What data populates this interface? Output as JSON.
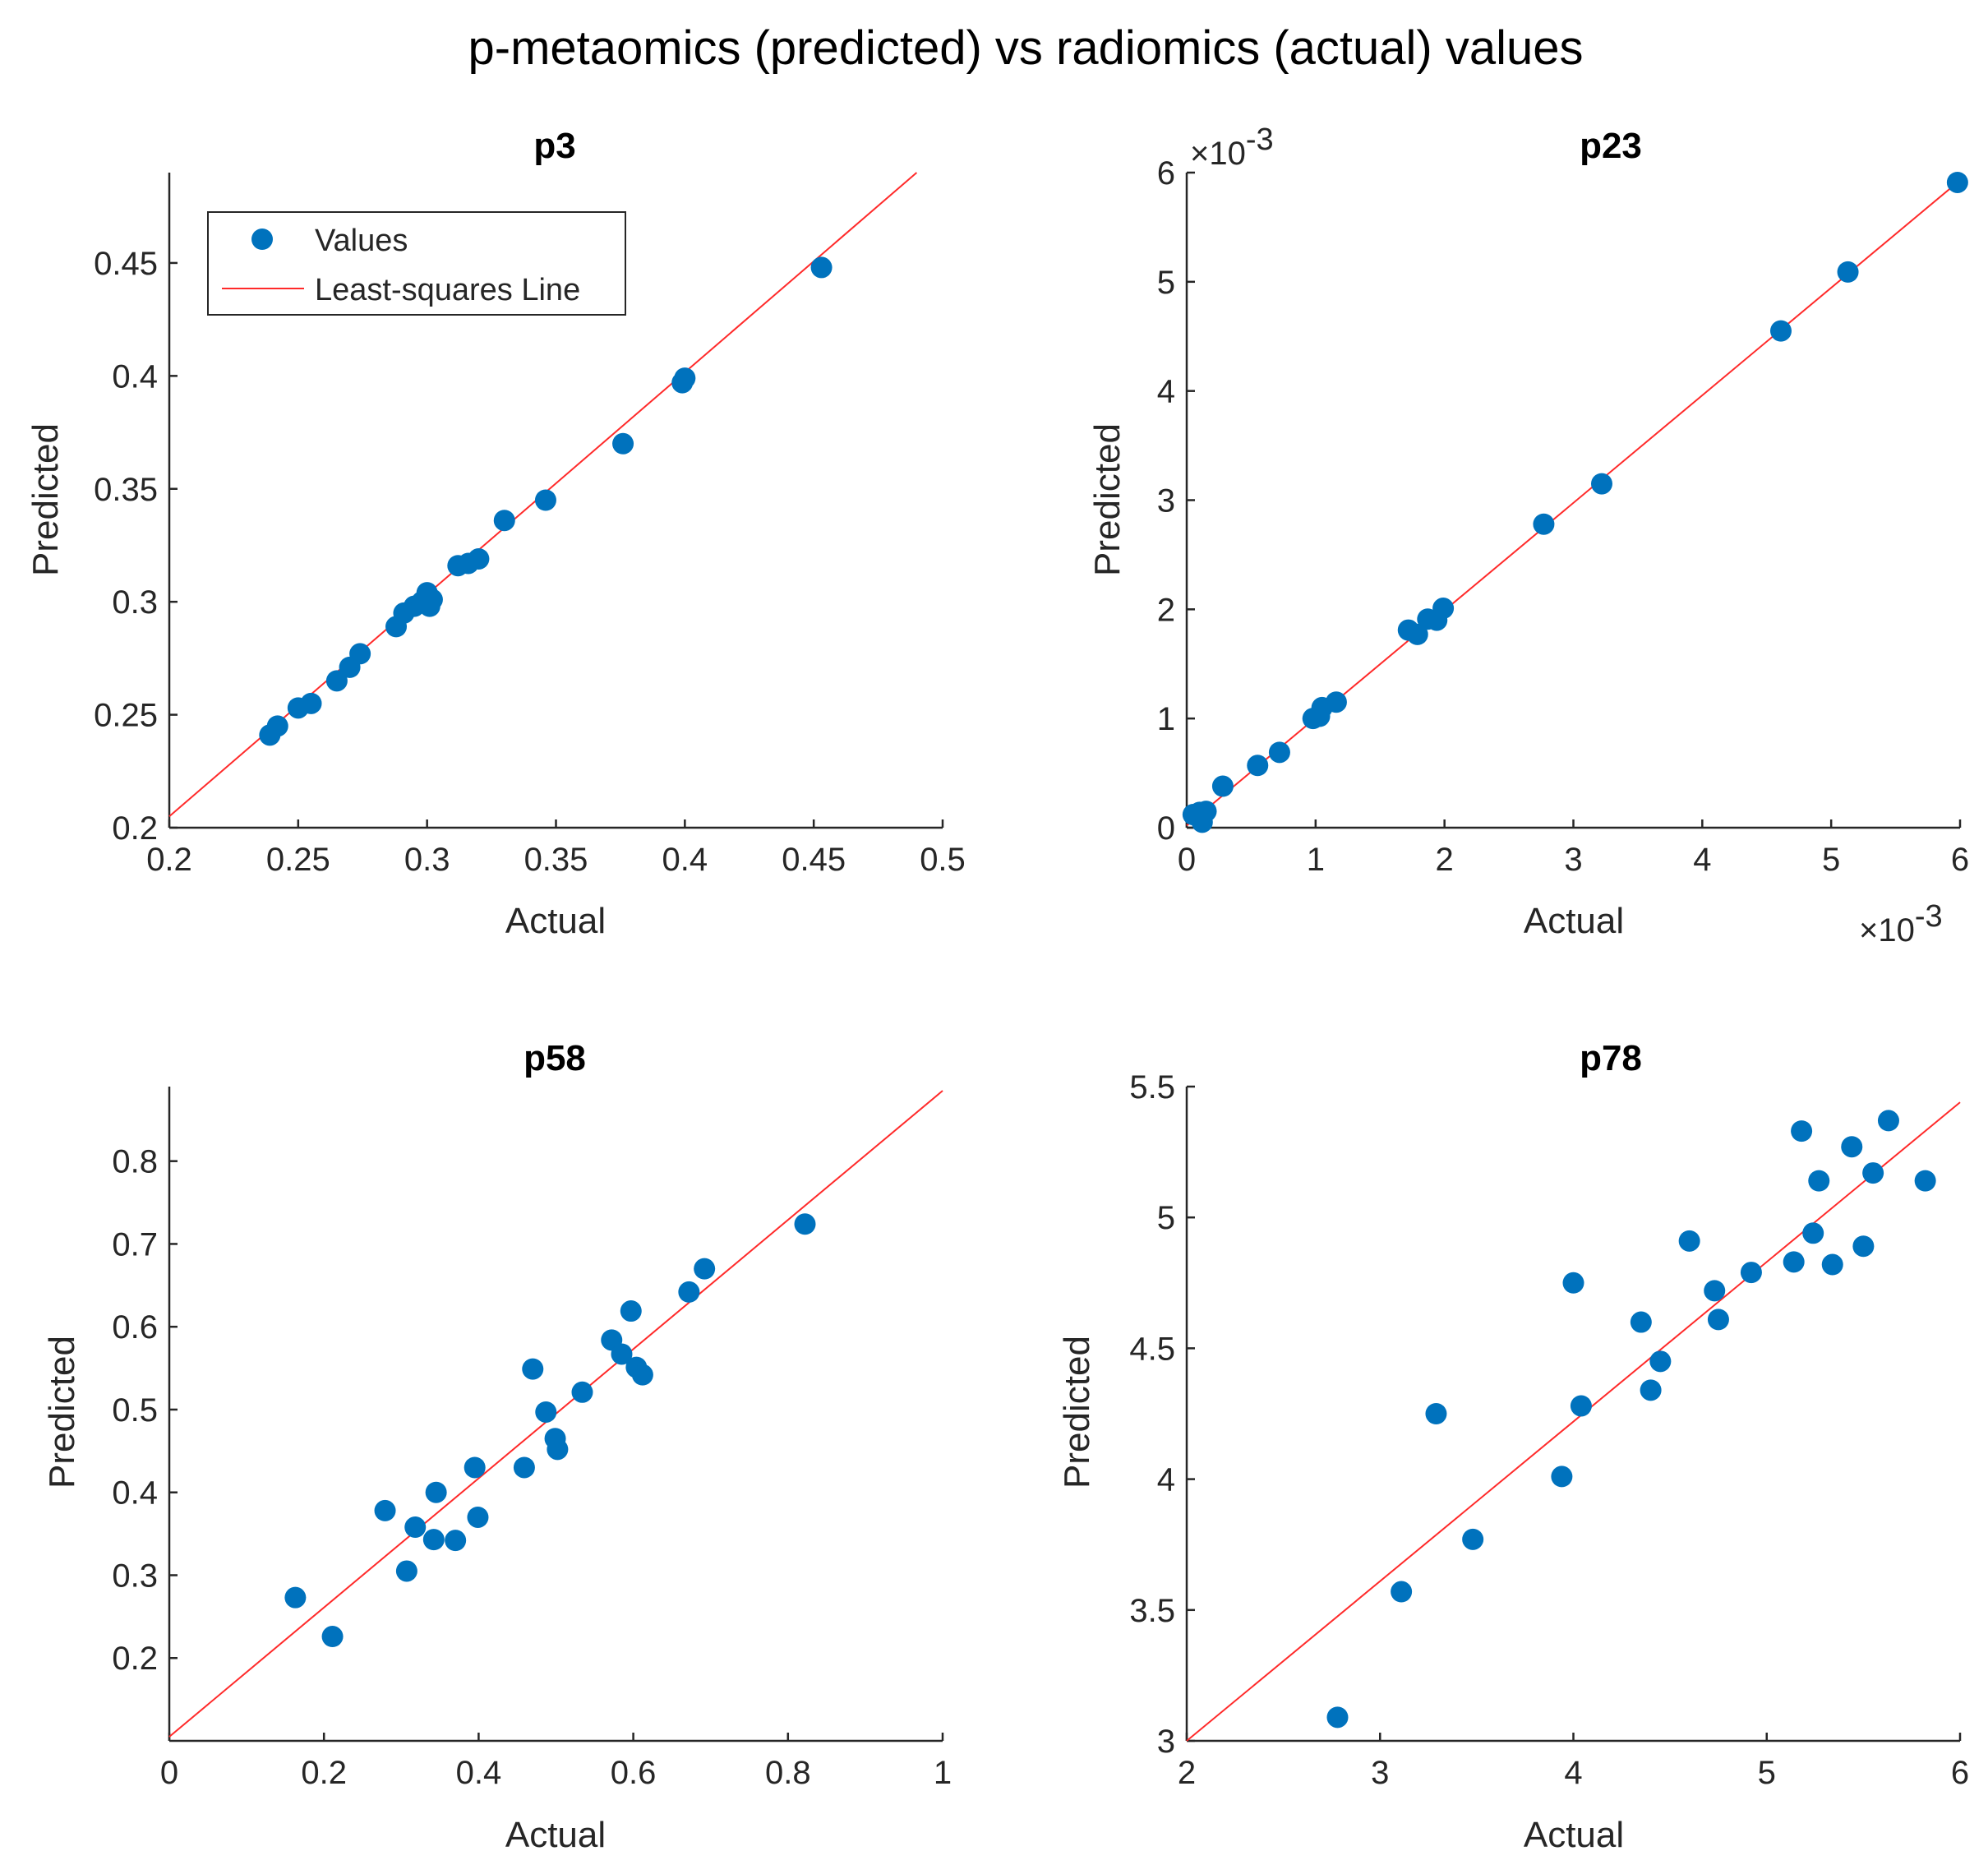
{
  "figure_title": "p-metaomics (predicted) vs radiomics (actual) values",
  "colors": {
    "marker": "#0072bd",
    "fit_line": "#ff2a2a",
    "axis": "#262626"
  },
  "chart_data": [
    {
      "type": "scatter",
      "title": "p3",
      "xlabel": "Actual",
      "ylabel": "Predicted",
      "xlim": [
        0.2,
        0.5
      ],
      "ylim": [
        0.2,
        0.49
      ],
      "xticks": [
        0.2,
        0.25,
        0.3,
        0.35,
        0.4,
        0.45,
        0.5
      ],
      "xtick_labels": [
        "0.2",
        "0.25",
        "0.3",
        "0.35",
        "0.4",
        "0.45",
        "0.5"
      ],
      "yticks": [
        0.2,
        0.25,
        0.3,
        0.35,
        0.4,
        0.45
      ],
      "ytick_labels": [
        "0.2",
        "0.25",
        "0.3",
        "0.35",
        "0.4",
        "0.45"
      ],
      "legend": {
        "position": "top-left",
        "entries": [
          "Values",
          "Least-squares Line"
        ]
      },
      "fit_line": {
        "slope": 0.983,
        "intercept": 0.0084
      },
      "points": [
        [
          0.239,
          0.241
        ],
        [
          0.242,
          0.245
        ],
        [
          0.25,
          0.253
        ],
        [
          0.255,
          0.255
        ],
        [
          0.265,
          0.265
        ],
        [
          0.27,
          0.271
        ],
        [
          0.274,
          0.277
        ],
        [
          0.288,
          0.289
        ],
        [
          0.291,
          0.295
        ],
        [
          0.295,
          0.298
        ],
        [
          0.298,
          0.3
        ],
        [
          0.3,
          0.304
        ],
        [
          0.302,
          0.301
        ],
        [
          0.301,
          0.298
        ],
        [
          0.312,
          0.316
        ],
        [
          0.316,
          0.317
        ],
        [
          0.32,
          0.319
        ],
        [
          0.33,
          0.336
        ],
        [
          0.346,
          0.345
        ],
        [
          0.376,
          0.37
        ],
        [
          0.399,
          0.397
        ],
        [
          0.4,
          0.399
        ],
        [
          0.453,
          0.448
        ]
      ]
    },
    {
      "type": "scatter",
      "title": "p23",
      "xlabel": "Actual",
      "ylabel": "Predicted",
      "x_multiplier": "×10",
      "x_exponent": "-3",
      "y_multiplier": "×10",
      "y_exponent": "-3",
      "xlim": [
        0,
        6
      ],
      "ylim": [
        0,
        6
      ],
      "xticks": [
        0,
        1,
        2,
        3,
        4,
        5,
        6
      ],
      "xtick_labels": [
        "0",
        "1",
        "2",
        "3",
        "4",
        "5",
        "6"
      ],
      "yticks": [
        0,
        1,
        2,
        3,
        4,
        5,
        6
      ],
      "ytick_labels": [
        "0",
        "1",
        "2",
        "3",
        "4",
        "5",
        "6"
      ],
      "fit_line": {
        "slope": 0.985,
        "intercept": 0.02
      },
      "points": [
        [
          0.05,
          0.12
        ],
        [
          0.1,
          0.14
        ],
        [
          0.15,
          0.15
        ],
        [
          0.12,
          0.05
        ],
        [
          0.28,
          0.38
        ],
        [
          0.55,
          0.57
        ],
        [
          0.72,
          0.69
        ],
        [
          0.98,
          1.0
        ],
        [
          1.03,
          1.02
        ],
        [
          1.05,
          1.1
        ],
        [
          1.16,
          1.15
        ],
        [
          1.72,
          1.81
        ],
        [
          1.79,
          1.77
        ],
        [
          1.87,
          1.91
        ],
        [
          1.94,
          1.9
        ],
        [
          1.99,
          2.01
        ],
        [
          2.77,
          2.78
        ],
        [
          3.22,
          3.15
        ],
        [
          4.61,
          4.55
        ],
        [
          5.13,
          5.09
        ],
        [
          5.98,
          5.91
        ]
      ]
    },
    {
      "type": "scatter",
      "title": "p58",
      "xlabel": "Actual",
      "ylabel": "Predicted",
      "xlim": [
        0,
        1
      ],
      "ylim": [
        0.1,
        0.89
      ],
      "xticks": [
        0,
        0.2,
        0.4,
        0.6,
        0.8,
        1
      ],
      "xtick_labels": [
        "0",
        "0.2",
        "0.4",
        "0.6",
        "0.8",
        "1"
      ],
      "yticks": [
        0.2,
        0.3,
        0.4,
        0.5,
        0.6,
        0.7,
        0.8
      ],
      "ytick_labels": [
        "0.2",
        "0.3",
        "0.4",
        "0.5",
        "0.6",
        "0.7",
        "0.8"
      ],
      "fit_line": {
        "slope": 0.78,
        "intercept": 0.105
      },
      "points": [
        [
          0.163,
          0.273
        ],
        [
          0.211,
          0.226
        ],
        [
          0.279,
          0.378
        ],
        [
          0.307,
          0.305
        ],
        [
          0.318,
          0.358
        ],
        [
          0.342,
          0.343
        ],
        [
          0.345,
          0.4
        ],
        [
          0.37,
          0.342
        ],
        [
          0.395,
          0.43
        ],
        [
          0.399,
          0.37
        ],
        [
          0.459,
          0.43
        ],
        [
          0.47,
          0.549
        ],
        [
          0.487,
          0.497
        ],
        [
          0.499,
          0.465
        ],
        [
          0.502,
          0.452
        ],
        [
          0.534,
          0.521
        ],
        [
          0.572,
          0.584
        ],
        [
          0.585,
          0.567
        ],
        [
          0.597,
          0.619
        ],
        [
          0.604,
          0.551
        ],
        [
          0.612,
          0.542
        ],
        [
          0.672,
          0.642
        ],
        [
          0.692,
          0.67
        ],
        [
          0.822,
          0.724
        ]
      ]
    },
    {
      "type": "scatter",
      "title": "p78",
      "xlabel": "Actual",
      "ylabel": "Predicted",
      "xlim": [
        2,
        6
      ],
      "ylim": [
        3,
        5.5
      ],
      "xticks": [
        2,
        3,
        4,
        5,
        6
      ],
      "xtick_labels": [
        "2",
        "3",
        "4",
        "5",
        "6"
      ],
      "yticks": [
        3,
        3.5,
        4,
        4.5,
        5,
        5.5
      ],
      "ytick_labels": [
        "3",
        "3.5",
        "4",
        "4.5",
        "5",
        "5.5"
      ],
      "fit_line": {
        "slope": 0.61,
        "intercept": 1.78
      },
      "points": [
        [
          2.78,
          3.09
        ],
        [
          3.11,
          3.57
        ],
        [
          3.29,
          4.25
        ],
        [
          3.48,
          3.77
        ],
        [
          3.94,
          4.01
        ],
        [
          4.0,
          4.75
        ],
        [
          4.04,
          4.28
        ],
        [
          4.35,
          4.6
        ],
        [
          4.4,
          4.34
        ],
        [
          4.45,
          4.45
        ],
        [
          4.6,
          4.91
        ],
        [
          4.73,
          4.72
        ],
        [
          4.75,
          4.61
        ],
        [
          4.92,
          4.79
        ],
        [
          5.14,
          4.83
        ],
        [
          5.18,
          5.33
        ],
        [
          5.24,
          4.94
        ],
        [
          5.27,
          5.14
        ],
        [
          5.34,
          4.82
        ],
        [
          5.44,
          5.27
        ],
        [
          5.5,
          4.89
        ],
        [
          5.55,
          5.17
        ],
        [
          5.63,
          5.37
        ],
        [
          5.82,
          5.14
        ]
      ]
    }
  ]
}
